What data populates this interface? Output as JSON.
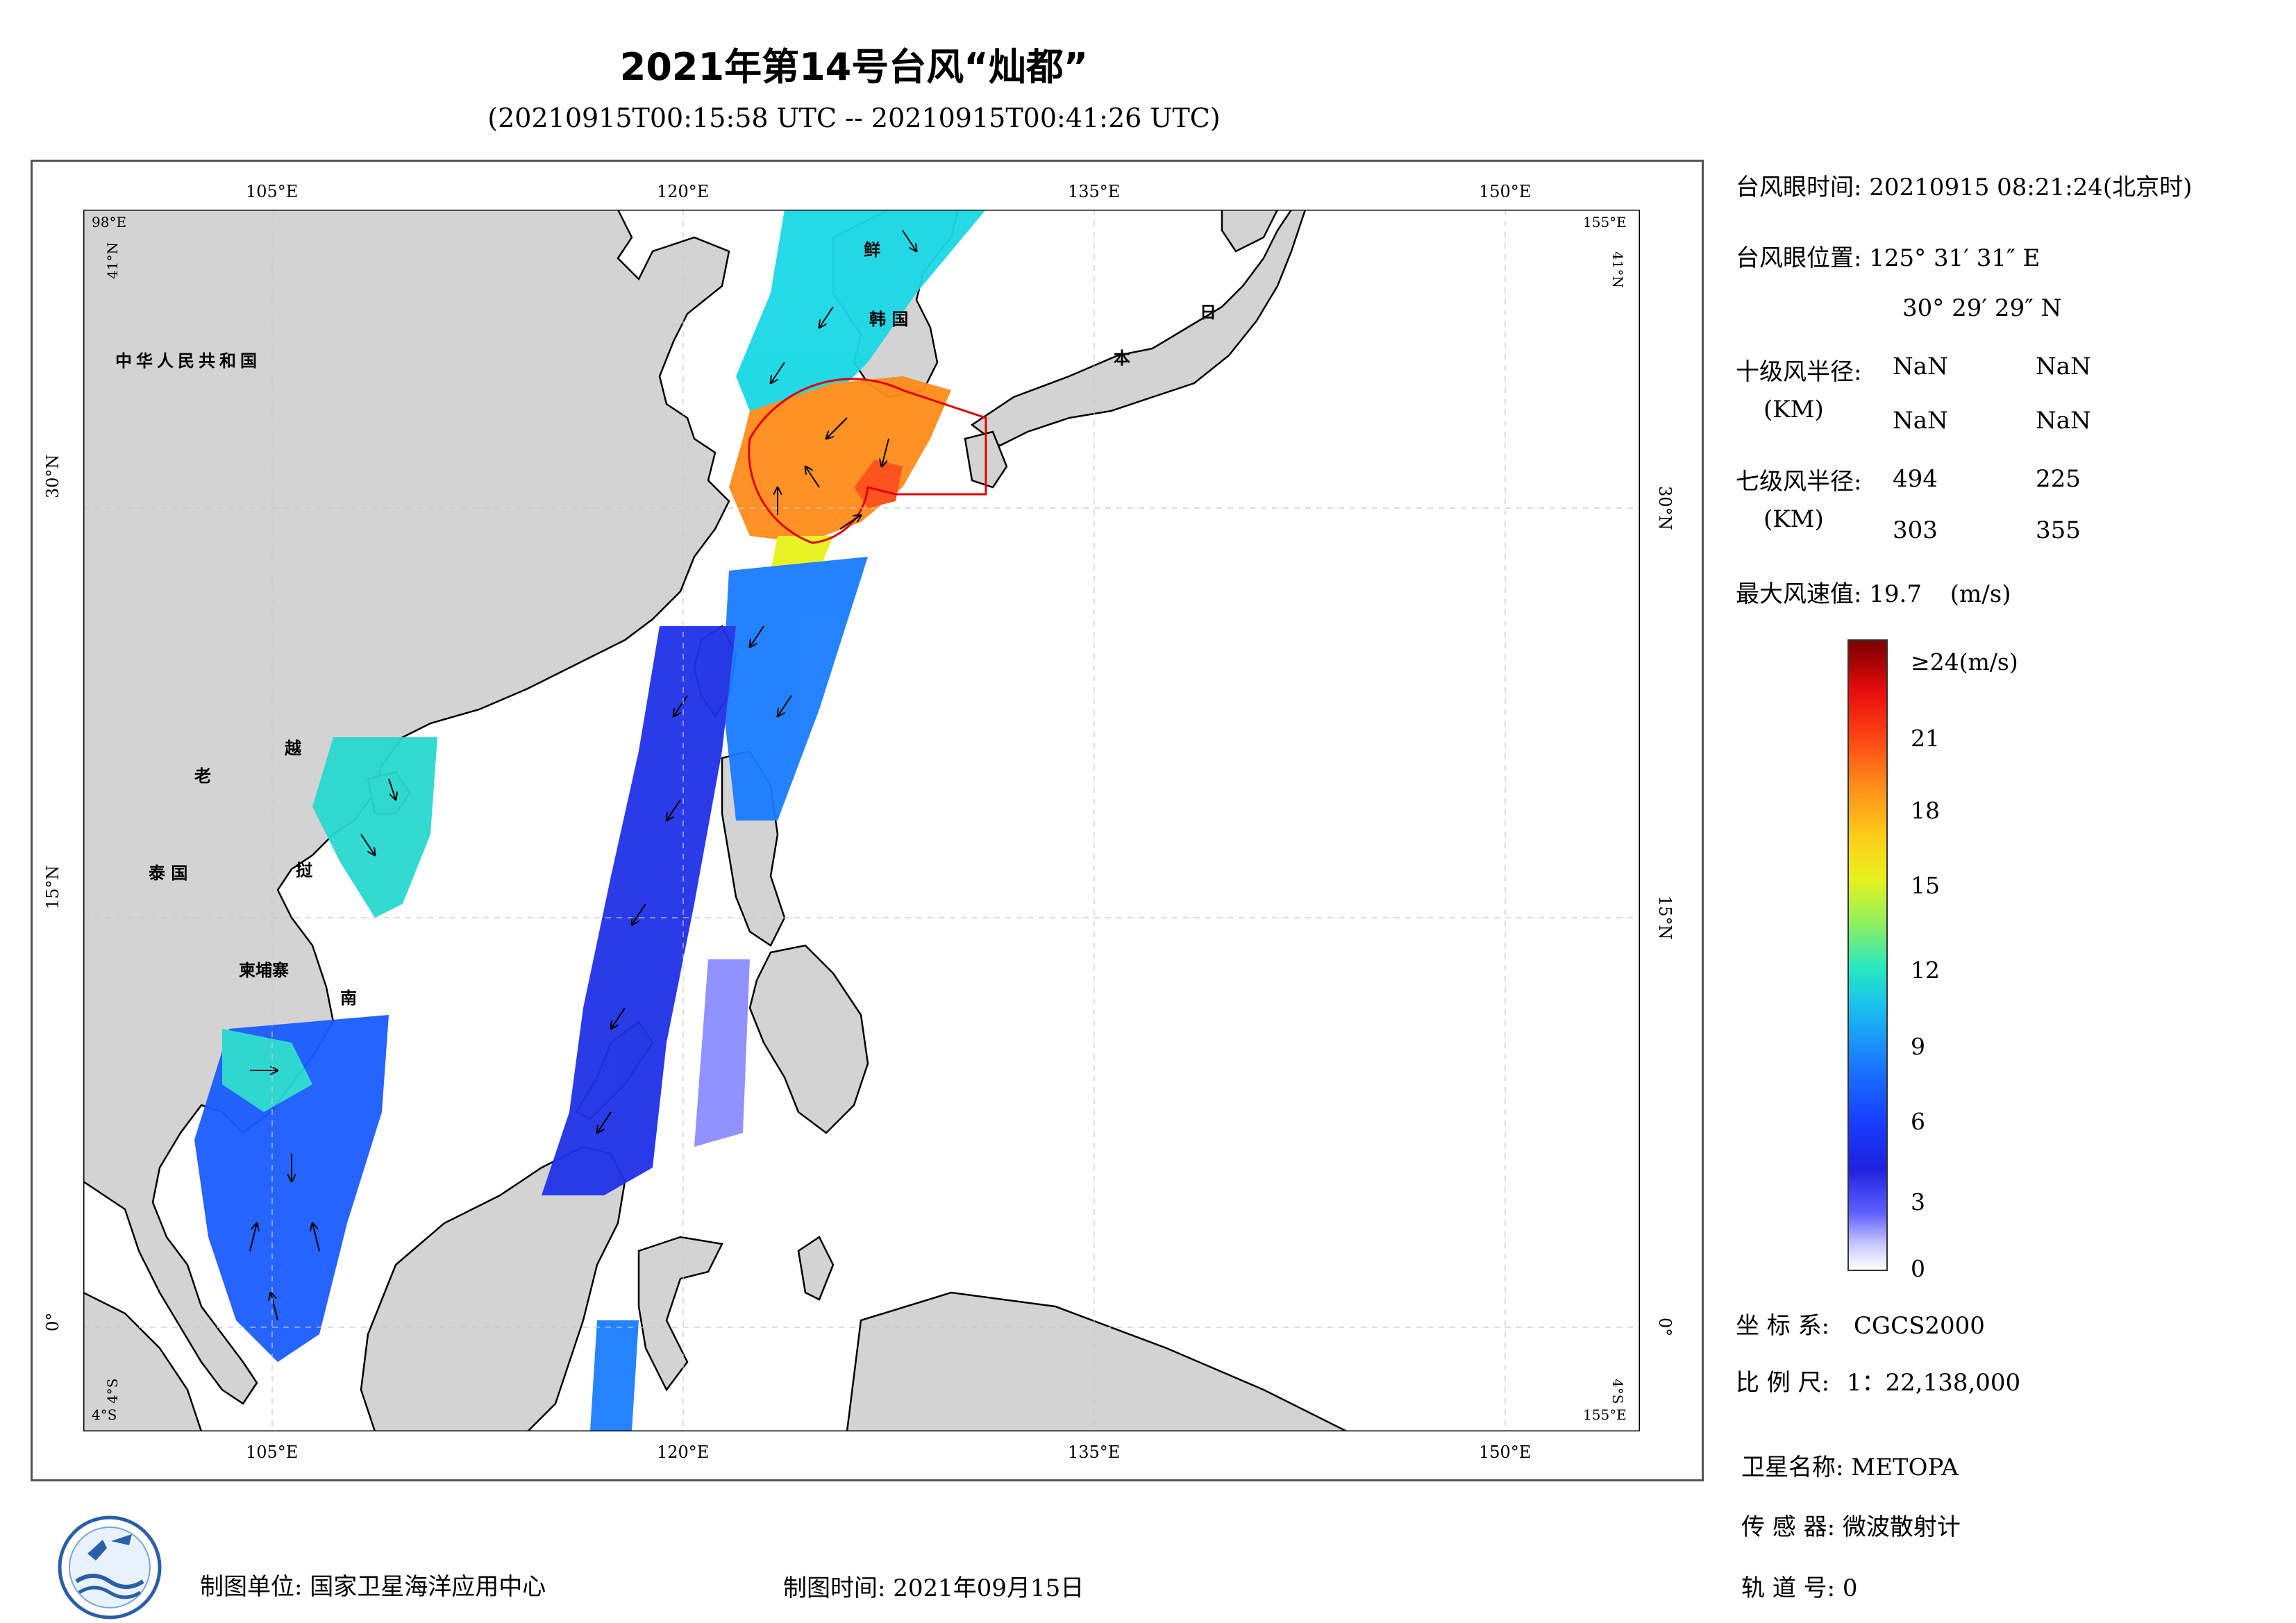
{
  "title": "2021年第14号台风“灿都”",
  "subtitle": "(20210915T00:15:58 UTC -- 20210915T00:41:26 UTC)",
  "map": {
    "lon_ticks": [
      "105°E",
      "120°E",
      "135°E",
      "150°E"
    ],
    "lat_ticks": [
      "30°N",
      "15°N",
      "0°"
    ],
    "corner_labels": {
      "top_left_lon": "98°E",
      "top_left_lat": "41°N",
      "top_right_lon": "155°E",
      "top_right_lat": "41°N",
      "bottom_left_lat": "4°S",
      "bottom_left_lon": "4°S",
      "bottom_right_lat": "4°S",
      "bottom_right_lon": "155°E"
    },
    "place_names": [
      {
        "text": "中华人民共和国",
        "name": "china-label"
      },
      {
        "text": "老",
        "name": "laos-label"
      },
      {
        "text": "越",
        "name": "vietnam-label-1"
      },
      {
        "text": "挝",
        "name": "laos-label-2"
      },
      {
        "text": "泰 国",
        "name": "thailand-label"
      },
      {
        "text": "柬埔寨",
        "name": "cambodia-label"
      },
      {
        "text": "南",
        "name": "vietnam-label-2"
      },
      {
        "text": "鲜",
        "name": "korea-label"
      },
      {
        "text": "韩 国",
        "name": "south-korea-label"
      },
      {
        "text": "日",
        "name": "japan-label-1"
      },
      {
        "text": "本",
        "name": "japan-label-2"
      }
    ],
    "colors": {
      "land": "#d3d3d3",
      "sea": "#ffffff",
      "coast": "#000000",
      "typhoon_circle": "#e00000"
    }
  },
  "info": {
    "eye_time_label": "台风眼时间:",
    "eye_time_value": "20210915 08:21:24(北京时)",
    "eye_pos_label": "台风眼位置:",
    "eye_pos_lon": "125° 31′ 31″ E",
    "eye_pos_lat": "30° 29′ 29″ N",
    "r10_label": "十级风半径:",
    "r10_unit": "(KM)",
    "r10_values": [
      "NaN",
      "NaN",
      "NaN",
      "NaN"
    ],
    "r7_label": "七级风半径:",
    "r7_unit": "(KM)",
    "r7_values": [
      "494",
      "225",
      "303",
      "355"
    ],
    "max_wind_label": "最大风速值:",
    "max_wind_value": "19.7",
    "max_wind_unit": "(m/s)"
  },
  "colorbar": {
    "ticks": [
      "≥24(m/s)",
      "21",
      "18",
      "15",
      "12",
      "9",
      "6",
      "3",
      "0"
    ],
    "min": 0,
    "max": 24,
    "unit": "m/s"
  },
  "meta": {
    "crs_label": "坐 标 系:",
    "crs_value": "CGCS2000",
    "scale_label": "比 例 尺:",
    "scale_value": "1：22,138,000",
    "satellite_label": "卫星名称:",
    "satellite_value": "METOPA",
    "sensor_label": "传 感 器:",
    "sensor_value": "微波散射计",
    "orbit_label": "轨 道 号:",
    "orbit_value": "0"
  },
  "footer": {
    "producer": "制图单位: 国家卫星海洋应用中心",
    "date": "制图时间: 2021年09月15日"
  }
}
